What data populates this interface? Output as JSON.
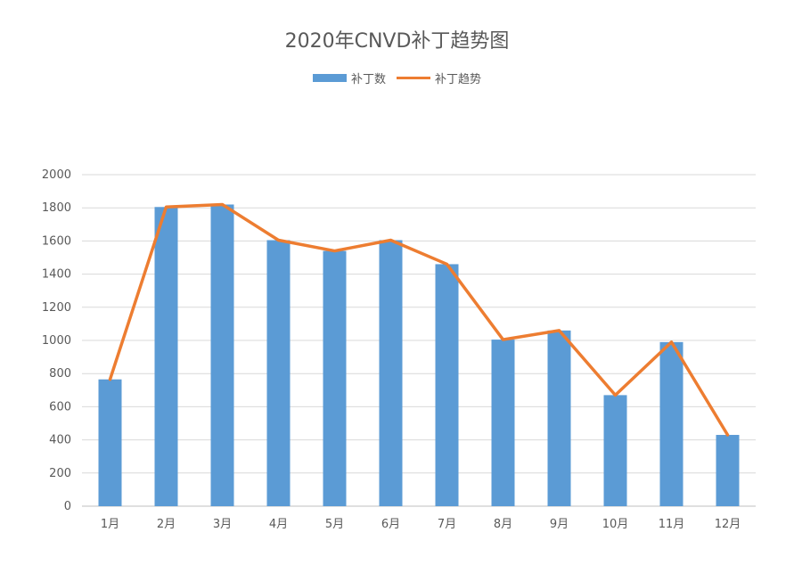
{
  "chart_data": {
    "type": "bar",
    "title": "2020年CNVD补丁趋势图",
    "categories": [
      "1月",
      "2月",
      "3月",
      "4月",
      "5月",
      "6月",
      "7月",
      "8月",
      "9月",
      "10月",
      "11月",
      "12月"
    ],
    "series": [
      {
        "name": "补丁数",
        "type": "bar",
        "color": "#5b9bd5",
        "values": [
          765,
          1805,
          1820,
          1605,
          1540,
          1605,
          1460,
          1005,
          1060,
          670,
          990,
          430
        ]
      },
      {
        "name": "补丁趋势",
        "type": "line",
        "color": "#ed7d31",
        "values": [
          765,
          1805,
          1820,
          1605,
          1540,
          1605,
          1460,
          1005,
          1060,
          670,
          990,
          430
        ]
      }
    ],
    "ylim": [
      0,
      2000
    ],
    "yticks": [
      0,
      200,
      400,
      600,
      800,
      1000,
      1200,
      1400,
      1600,
      1800,
      2000
    ],
    "grid": true,
    "legend_position": "top"
  }
}
